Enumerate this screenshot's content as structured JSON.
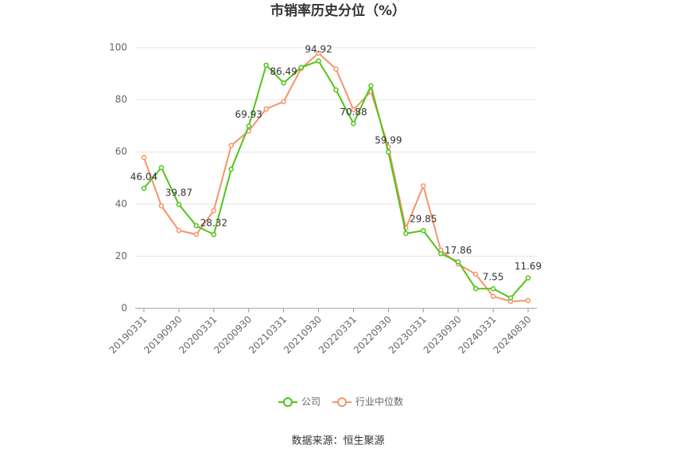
{
  "chart_data": {
    "type": "line",
    "title": "市销率历史分位（%）",
    "categories": [
      "20190331",
      null,
      "20190930",
      null,
      "20200331",
      null,
      "20200930",
      null,
      "20210331",
      null,
      "20210930",
      null,
      "20220331",
      null,
      "20220930",
      null,
      "20230331",
      null,
      "20230930",
      null,
      "20240331",
      null,
      "20240830"
    ],
    "series": [
      {
        "name": "公司",
        "color": "#52c41a",
        "values": [
          46.04,
          54,
          39.87,
          31.7,
          28.32,
          53.4,
          69.93,
          93.3,
          86.49,
          92.4,
          94.92,
          83.8,
          70.88,
          85.4,
          59.99,
          28.7,
          29.85,
          21,
          17.86,
          7.6,
          7.55,
          4,
          11.69
        ],
        "value_labels": [
          "46.04",
          null,
          "39.87",
          null,
          "28.32",
          null,
          "69.93",
          null,
          "86.49",
          null,
          "94.92",
          null,
          "70.88",
          null,
          "59.99",
          null,
          "29.85",
          null,
          "17.86",
          null,
          "7.55",
          null,
          "11.69"
        ]
      },
      {
        "name": "行业中位数",
        "color": "#f4956a",
        "values": [
          57.9,
          39.3,
          29.9,
          28.4,
          37.5,
          62.5,
          68,
          76.5,
          79.3,
          92,
          97.9,
          91.8,
          76.2,
          83.2,
          61.9,
          30.8,
          47,
          22.3,
          17,
          13.1,
          4.6,
          2.7,
          3
        ]
      }
    ],
    "ylim": [
      0,
      100
    ],
    "yticks": [
      0,
      20,
      40,
      60,
      80,
      100
    ],
    "grid": true,
    "legend": "bottom",
    "source": "数据来源：恒生聚源"
  }
}
